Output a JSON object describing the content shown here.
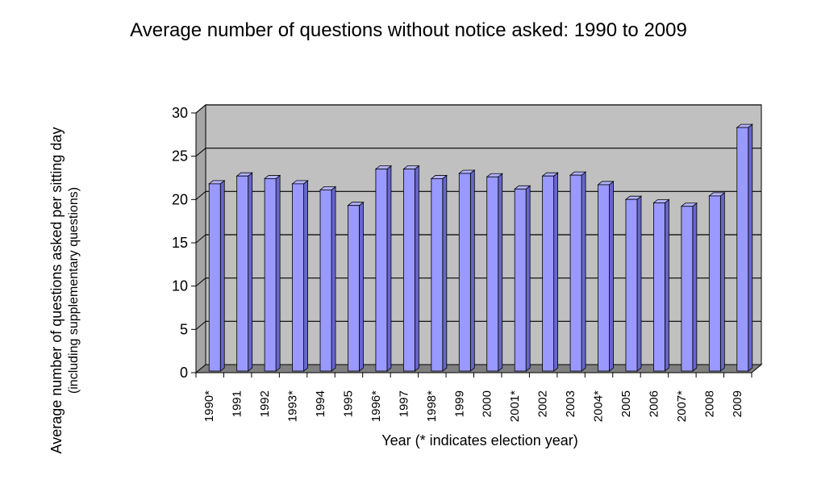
{
  "chart_data": {
    "type": "bar",
    "title": "Average number of questions without notice asked: 1990 to 2009",
    "ylabel": "Average number of questions asked per sitting day",
    "ylabel_sub": "(including supplementary questions)",
    "xlabel": "Year (* indicates election year)",
    "ylim": [
      0,
      30
    ],
    "yticks": [
      0,
      5,
      10,
      15,
      20,
      25,
      30
    ],
    "grid": true,
    "categories": [
      "1990*",
      "1991",
      "1992",
      "1993*",
      "1994",
      "1995",
      "1996*",
      "1997",
      "1998*",
      "1999",
      "2000",
      "2001*",
      "2002",
      "2003",
      "2004*",
      "2005",
      "2006",
      "2007*",
      "2008",
      "2009"
    ],
    "values": [
      22.0,
      22.9,
      22.6,
      22.0,
      21.3,
      19.5,
      23.7,
      23.7,
      22.6,
      23.2,
      22.8,
      21.4,
      22.9,
      23.0,
      21.9,
      20.2,
      19.8,
      19.4,
      20.6,
      28.5
    ],
    "colors": {
      "bar_front": "#9999ff",
      "bar_top": "#b3b3ff",
      "bar_side": "#6666cc",
      "back_wall": "#c0c0c0",
      "floor": "#808080"
    }
  }
}
